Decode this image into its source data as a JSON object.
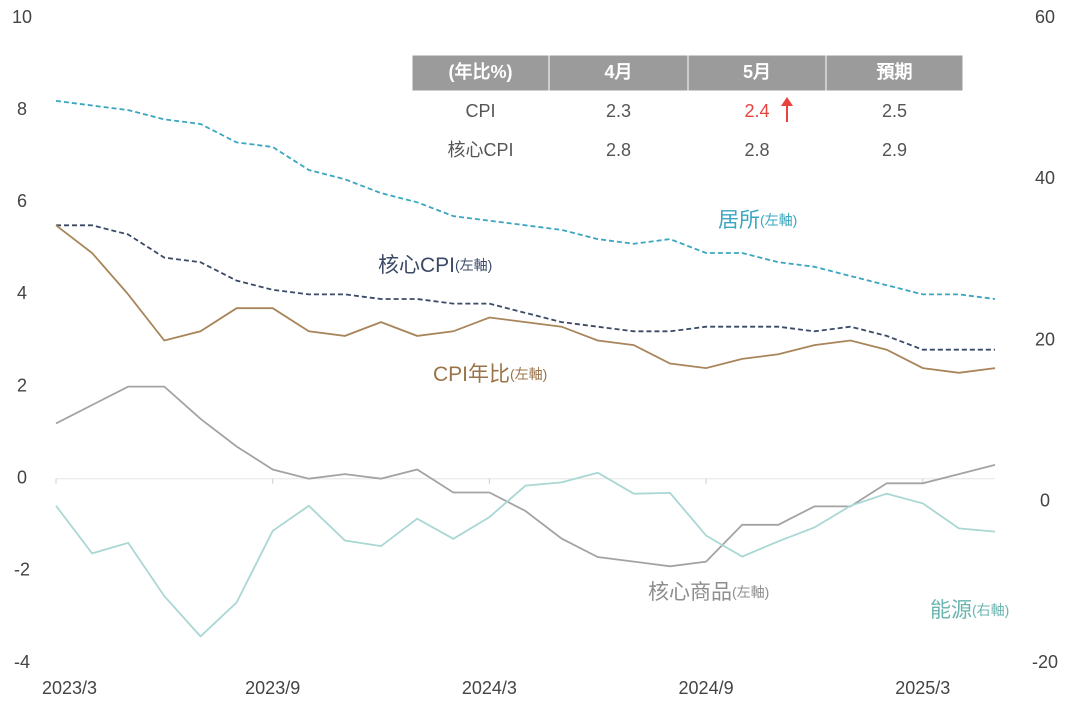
{
  "chart_data": {
    "type": "line",
    "categories": [
      "2023/3",
      null,
      null,
      null,
      null,
      null,
      "2023/9",
      null,
      null,
      null,
      null,
      null,
      "2024/3",
      null,
      null,
      null,
      null,
      null,
      "2024/9",
      null,
      null,
      null,
      null,
      null,
      "2025/3",
      null,
      null
    ],
    "ylim": [
      -4,
      10
    ],
    "yticks": [
      -4,
      -2,
      0,
      2,
      4,
      6,
      8,
      10
    ],
    "y2lim": [
      -20,
      60
    ],
    "y2ticks": [
      -20,
      0,
      20,
      40,
      60
    ],
    "series": [
      {
        "name": "居所",
        "axis_note": "(左軸)",
        "color": "#3aa6bf",
        "dashed": true,
        "values": [
          8.2,
          8.1,
          8.0,
          7.8,
          7.7,
          7.3,
          7.2,
          6.7,
          6.5,
          6.2,
          6.0,
          5.7,
          5.6,
          5.5,
          5.4,
          5.2,
          5.1,
          5.2,
          4.9,
          4.9,
          4.7,
          4.6,
          4.4,
          4.2,
          4.0,
          4.0,
          3.9
        ]
      },
      {
        "name": "核心CPI",
        "axis_note": "(左軸)",
        "color": "#3b4a66",
        "dashed": true,
        "values": [
          5.5,
          5.5,
          5.3,
          4.8,
          4.7,
          4.3,
          4.1,
          4.0,
          4.0,
          3.9,
          3.9,
          3.8,
          3.8,
          3.6,
          3.4,
          3.3,
          3.2,
          3.2,
          3.3,
          3.3,
          3.3,
          3.2,
          3.3,
          3.1,
          2.8,
          2.8,
          2.8
        ]
      },
      {
        "name": "CPI年比",
        "axis_note": "(左軸)",
        "color": "#a8855a",
        "dashed": false,
        "values": [
          5.5,
          4.9,
          4.0,
          3.0,
          3.2,
          3.7,
          3.7,
          3.2,
          3.1,
          3.4,
          3.1,
          3.2,
          3.5,
          3.4,
          3.3,
          3.0,
          2.9,
          2.5,
          2.4,
          2.6,
          2.7,
          2.9,
          3.0,
          2.8,
          2.4,
          2.3,
          2.4
        ]
      },
      {
        "name": "核心商品",
        "axis_note": "(左軸)",
        "color": "#a3a3a3",
        "dashed": false,
        "values": [
          1.2,
          1.6,
          2.0,
          2.0,
          1.3,
          0.7,
          0.2,
          0.0,
          0.1,
          0.0,
          0.2,
          -0.3,
          -0.3,
          -0.7,
          -1.3,
          -1.7,
          -1.8,
          -1.9,
          -1.8,
          -1.0,
          -1.0,
          -0.6,
          -0.6,
          -0.1,
          -0.1,
          0.1,
          0.3
        ]
      },
      {
        "name": "能源",
        "axis_note": "(右軸)",
        "color": "#a9d7d4",
        "dashed": false,
        "axis": "y2",
        "values": [
          -0.5,
          -6.4,
          -5.1,
          -11.7,
          -16.7,
          -12.5,
          -3.6,
          -0.5,
          -4.8,
          -5.5,
          -2.1,
          -4.6,
          -1.9,
          2.0,
          2.4,
          3.6,
          1.0,
          1.1,
          -4.2,
          -6.8,
          -4.9,
          -3.2,
          -0.5,
          1.0,
          -0.2,
          -3.3,
          -3.7
        ]
      }
    ],
    "table": {
      "header": [
        "(年比%)",
        "4月",
        "5月",
        "預期"
      ],
      "rows": [
        [
          "CPI",
          "2.3",
          "2.4",
          "2.5"
        ],
        [
          "核心CPI",
          "2.8",
          "2.8",
          "2.9"
        ]
      ]
    }
  }
}
